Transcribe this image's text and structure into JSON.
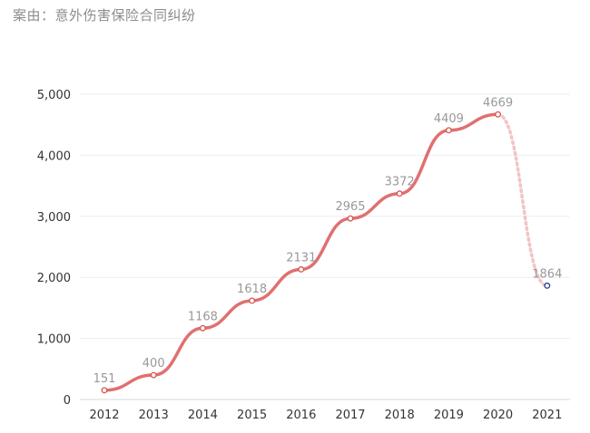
{
  "header": {
    "case_label": "案由：意外伤害保险合同纠纷"
  },
  "colors": {
    "line": "#e07070",
    "projected_line": "#f3c4c4",
    "point_fill": "#ffffff",
    "point_stroke": "#d9534f",
    "projected_point_stroke": "#2a3f8f",
    "grid": "#eeeeee",
    "axis": "#d9d9d9"
  },
  "chart_data": {
    "type": "line",
    "title": "",
    "xlabel": "",
    "ylabel": "",
    "categories": [
      "2012",
      "2013",
      "2014",
      "2015",
      "2016",
      "2017",
      "2018",
      "2019",
      "2020",
      "2021"
    ],
    "values": [
      151,
      400,
      1168,
      1618,
      2131,
      2965,
      3372,
      4409,
      4669,
      1864
    ],
    "data_labels": [
      "151",
      "400",
      "1168",
      "1618",
      "2131",
      "2965",
      "3372",
      "4409",
      "4669",
      "1864"
    ],
    "yticks": [
      {
        "value": 0,
        "label": "0"
      },
      {
        "value": 1000,
        "label": "1,000"
      },
      {
        "value": 2000,
        "label": "2,000"
      },
      {
        "value": 3000,
        "label": "3,000"
      },
      {
        "value": 4000,
        "label": "4,000"
      },
      {
        "value": 5000,
        "label": "5,000"
      }
    ],
    "ylim": [
      0,
      5000
    ],
    "grid": true,
    "smooth": true,
    "dashed_last_segment": true
  }
}
